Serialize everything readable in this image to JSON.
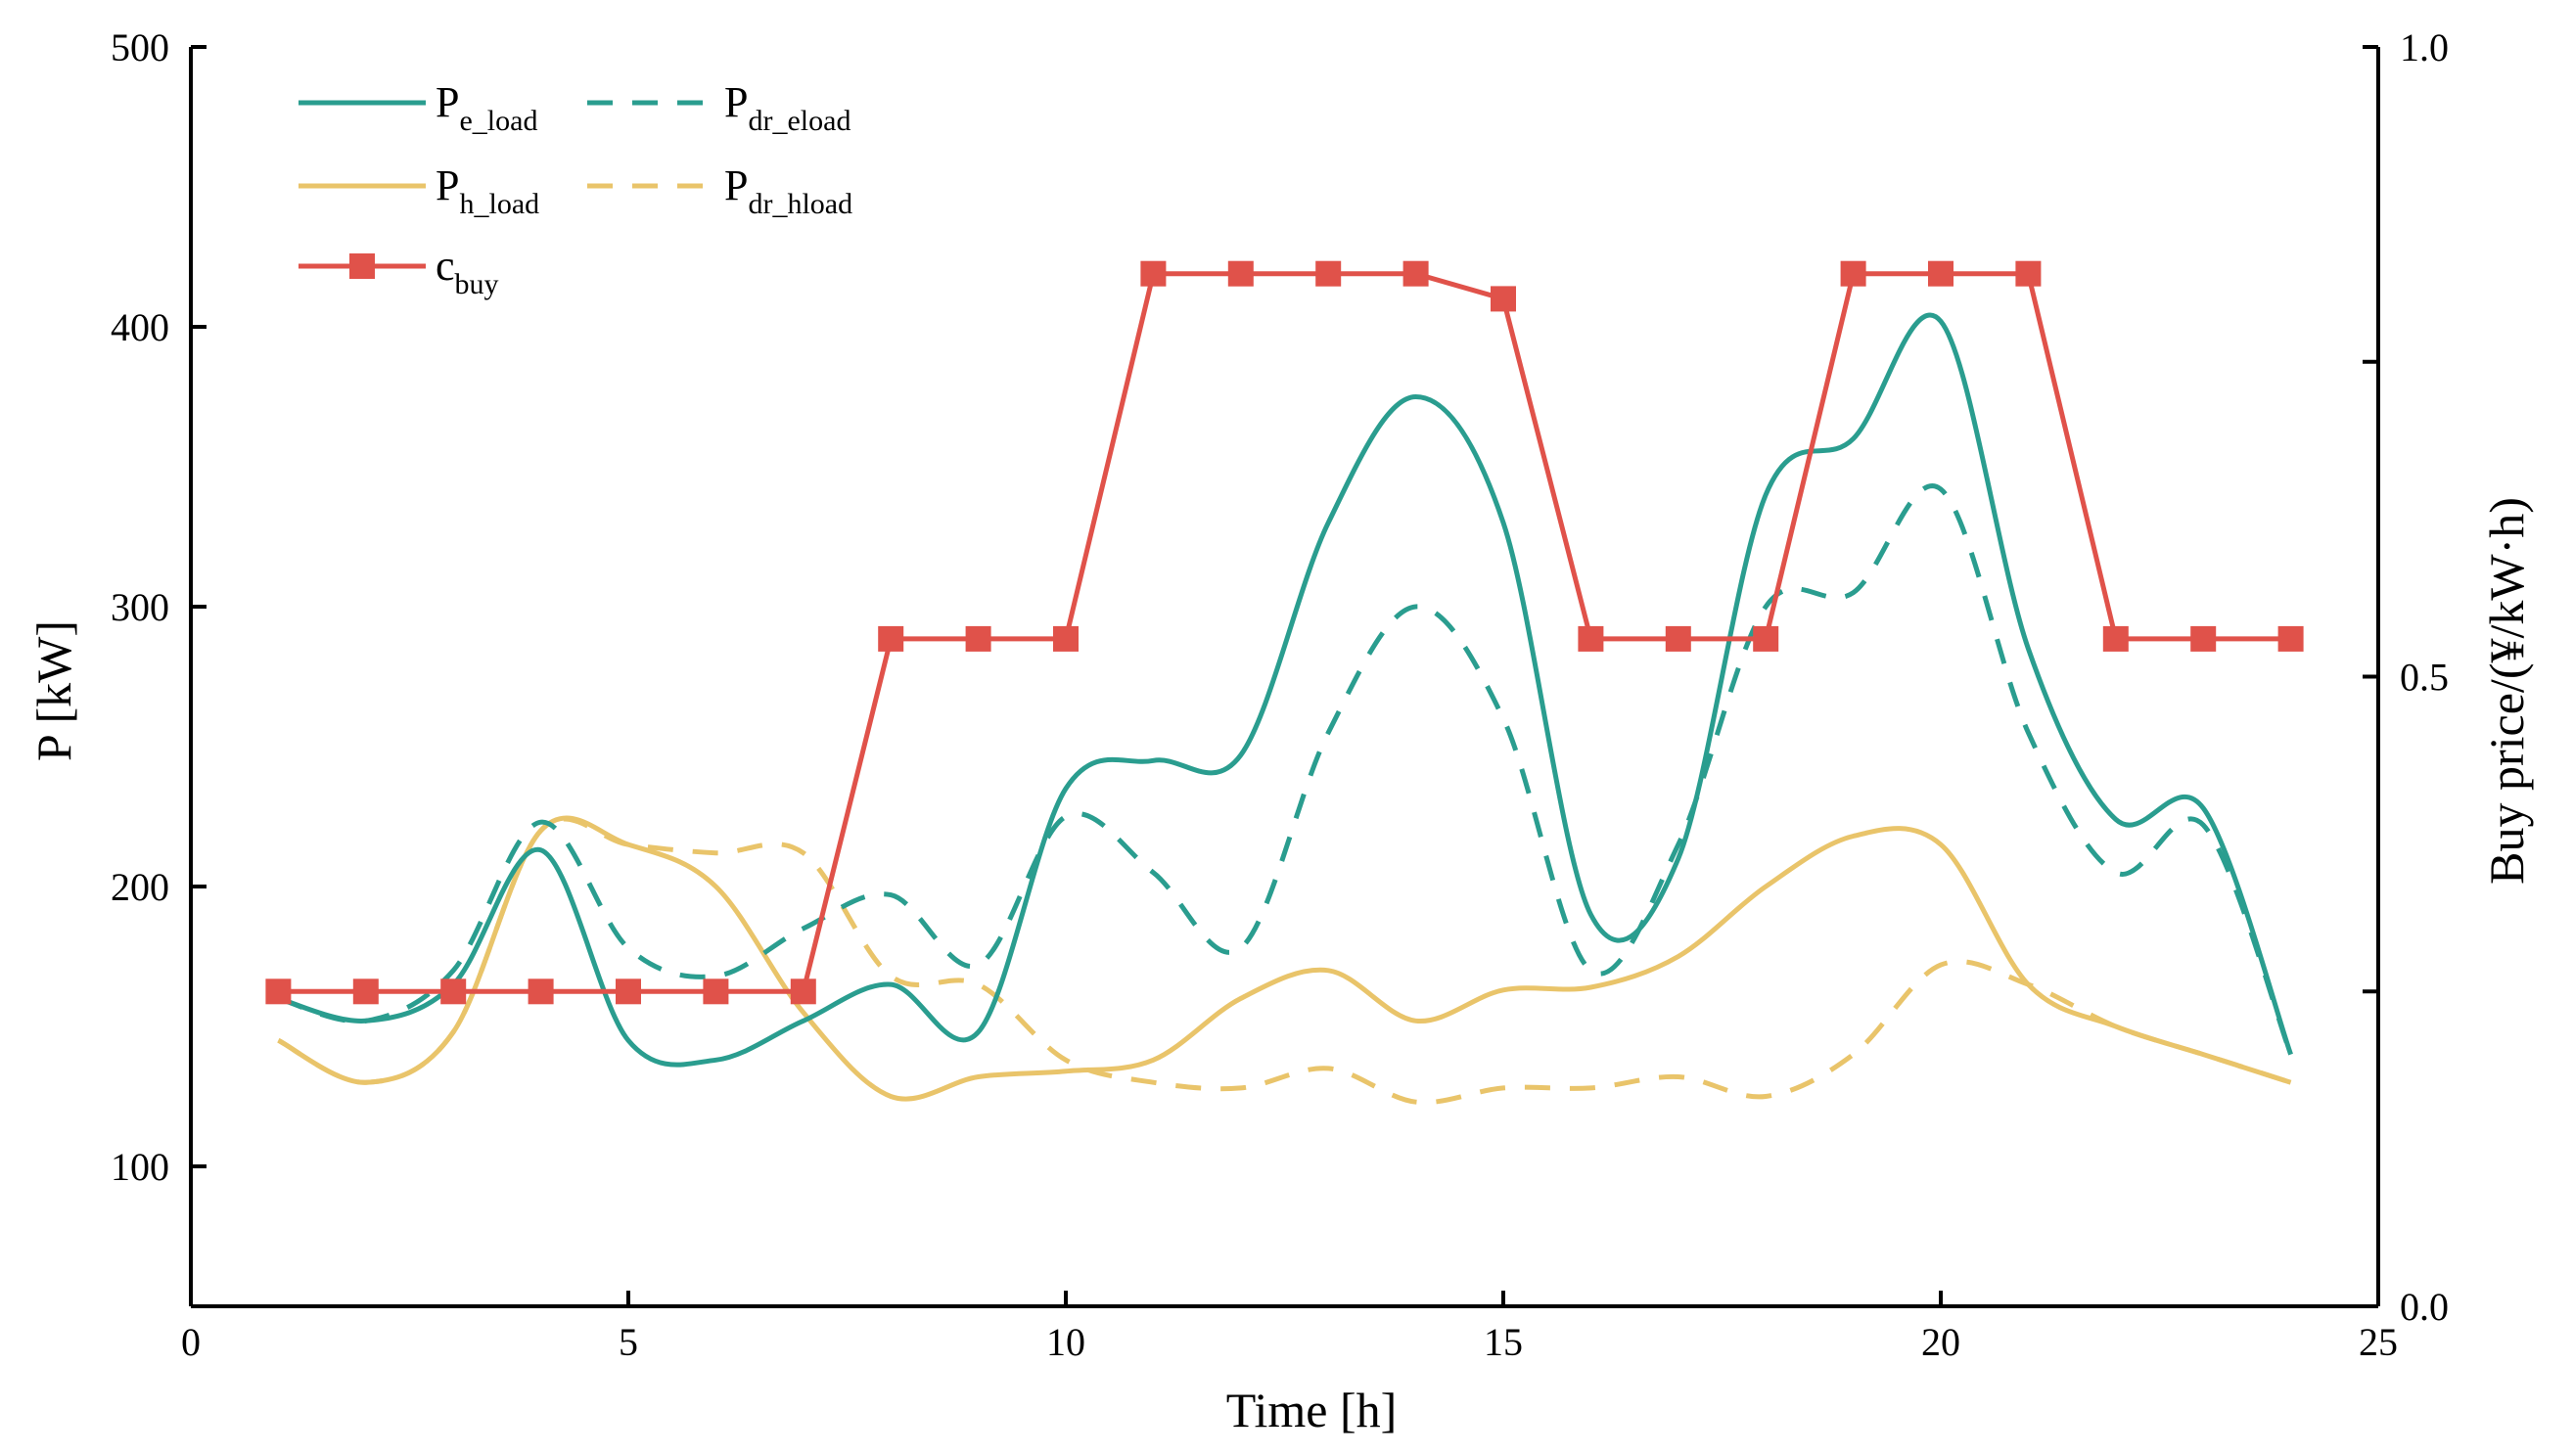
{
  "chart_data": {
    "type": "line",
    "title": "",
    "xlabel": "Time [h]",
    "ylabel": "P [kW]",
    "y2label": "Buy price/(¥/kW·h)",
    "xlim": [
      0,
      25
    ],
    "ylim": [
      50,
      500
    ],
    "y2lim": [
      0.0,
      1.0
    ],
    "x_ticks": [
      0,
      5,
      10,
      15,
      20,
      25
    ],
    "x_tick_labels": [
      "0",
      "5",
      "10",
      "15",
      "20",
      "25"
    ],
    "y_ticks": [
      100,
      200,
      300,
      400,
      500
    ],
    "y_tick_labels": [
      "100",
      "200",
      "300",
      "400",
      "500"
    ],
    "y2_ticks": [
      0.0,
      0.25,
      0.5,
      0.75,
      1.0
    ],
    "y2_tick_labels": [
      "0.0",
      "",
      "0.5",
      "",
      "1.0"
    ],
    "legend_position": "top-left",
    "series": [
      {
        "name": "P_e_load",
        "legend_main": "P",
        "legend_sub": "e_load",
        "axis": "left",
        "style": "solid",
        "color": "#2a9d8f",
        "x": [
          1,
          2,
          3,
          4,
          5,
          6,
          7,
          8,
          9,
          10,
          11,
          12,
          13,
          14,
          15,
          16,
          17,
          18,
          19,
          20,
          21,
          22,
          23,
          24
        ],
        "values": [
          160,
          152,
          165,
          213,
          145,
          138,
          152,
          165,
          148,
          235,
          245,
          247,
          330,
          375,
          330,
          190,
          210,
          340,
          360,
          402,
          285,
          224,
          228,
          140
        ]
      },
      {
        "name": "P_dr_eload",
        "legend_main": "P",
        "legend_sub": "dr_eload",
        "axis": "left",
        "style": "dashed",
        "color": "#2a9d8f",
        "x": [
          1,
          2,
          3,
          4,
          5,
          6,
          7,
          8,
          9,
          10,
          11,
          12,
          13,
          14,
          15,
          16,
          17,
          18,
          19,
          20,
          21,
          22,
          23,
          24
        ],
        "values": [
          160,
          152,
          170,
          223,
          178,
          168,
          185,
          197,
          172,
          225,
          205,
          178,
          255,
          300,
          260,
          170,
          215,
          300,
          305,
          342,
          255,
          205,
          222,
          140
        ]
      },
      {
        "name": "P_h_load",
        "legend_main": "P",
        "legend_sub": "h_load",
        "axis": "left",
        "style": "solid",
        "color": "#e9c46a",
        "x": [
          1,
          2,
          3,
          4,
          5,
          6,
          7,
          8,
          9,
          10,
          11,
          12,
          13,
          14,
          15,
          16,
          17,
          18,
          19,
          20,
          21,
          22,
          23,
          24
        ],
        "values": [
          145,
          130,
          148,
          220,
          215,
          200,
          155,
          125,
          132,
          134,
          138,
          160,
          170,
          152,
          163,
          164,
          175,
          200,
          218,
          215,
          165,
          150,
          140,
          130
        ]
      },
      {
        "name": "P_dr_hload",
        "legend_main": "P",
        "legend_sub": "dr_hload",
        "axis": "left",
        "style": "dashed",
        "color": "#e9c46a",
        "x": [
          1,
          2,
          3,
          4,
          5,
          6,
          7,
          8,
          9,
          10,
          11,
          12,
          13,
          14,
          15,
          16,
          17,
          18,
          19,
          20,
          21,
          22,
          23,
          24
        ],
        "values": [
          145,
          130,
          148,
          220,
          215,
          212,
          212,
          168,
          165,
          138,
          130,
          128,
          135,
          123,
          128,
          128,
          132,
          125,
          140,
          172,
          165,
          150,
          140,
          130
        ]
      },
      {
        "name": "c_buy",
        "legend_main": "c",
        "legend_sub": "buy",
        "axis": "right",
        "style": "solid-markers",
        "color": "#e0524a",
        "x": [
          1,
          2,
          3,
          4,
          5,
          6,
          7,
          8,
          9,
          10,
          11,
          12,
          13,
          14,
          15,
          16,
          17,
          18,
          19,
          20,
          21,
          22,
          23,
          24
        ],
        "values": [
          0.25,
          0.25,
          0.25,
          0.25,
          0.25,
          0.25,
          0.25,
          0.53,
          0.53,
          0.53,
          0.82,
          0.82,
          0.82,
          0.82,
          0.8,
          0.53,
          0.53,
          0.53,
          0.82,
          0.82,
          0.82,
          0.53,
          0.53,
          0.53
        ]
      }
    ]
  }
}
